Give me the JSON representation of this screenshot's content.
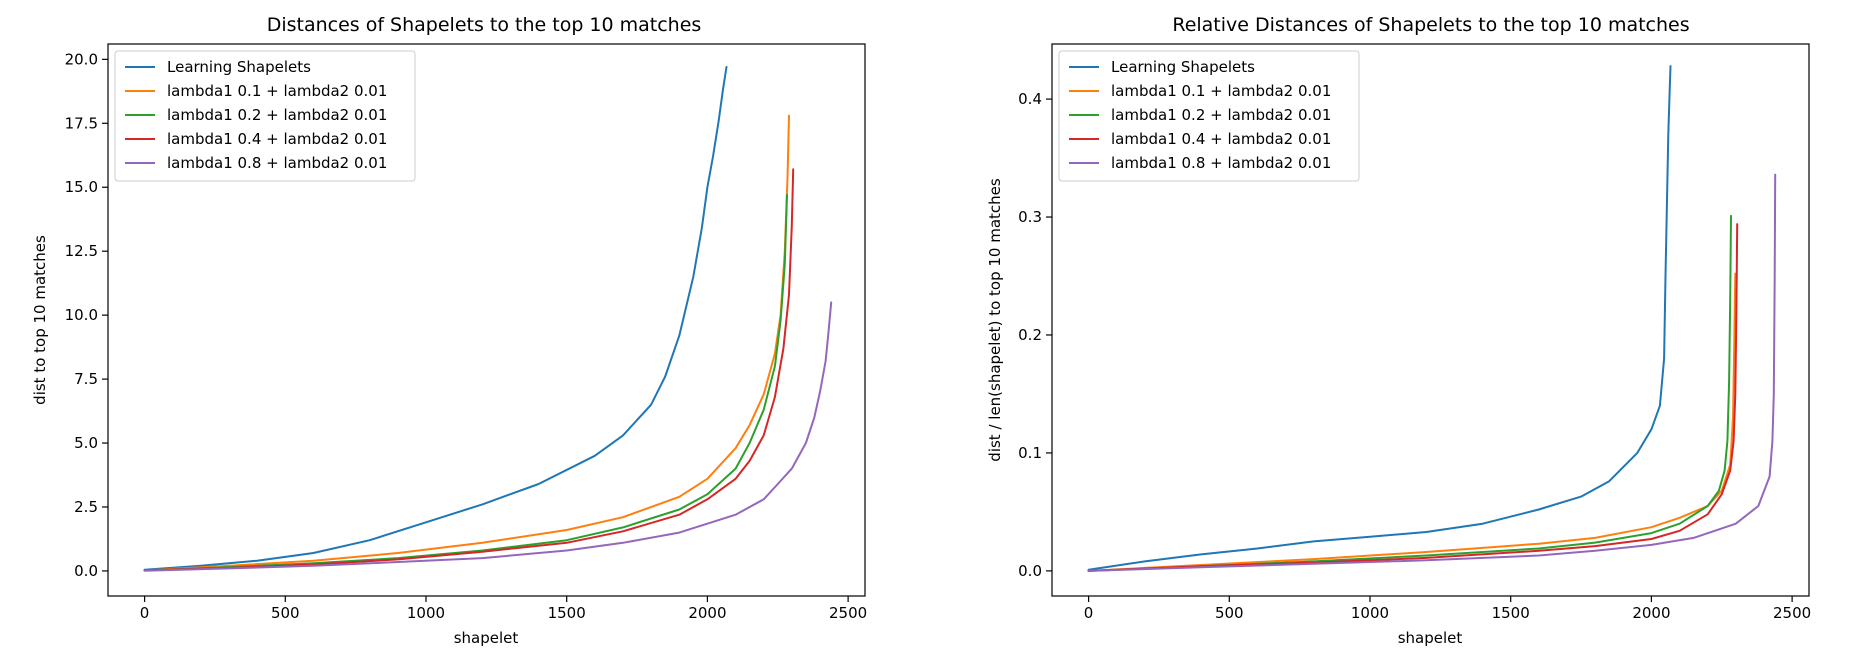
{
  "chart_data": [
    {
      "type": "line",
      "title": "Distances of Shapelets to the top 10 matches",
      "xlabel": "shapelet",
      "ylabel": "dist to top 10 matches",
      "xlim": [
        -130,
        2560
      ],
      "ylim": [
        -0.98,
        20.6
      ],
      "xticks": [
        0,
        500,
        1000,
        1500,
        2000,
        2500
      ],
      "yticks": [
        0.0,
        2.5,
        5.0,
        7.5,
        10.0,
        12.5,
        15.0,
        17.5,
        20.0
      ],
      "xtick_labels": [
        "0",
        "500",
        "1000",
        "1500",
        "2000",
        "2500"
      ],
      "ytick_labels": [
        "0.0",
        "2.5",
        "5.0",
        "7.5",
        "10.0",
        "12.5",
        "15.0",
        "17.5",
        "20.0"
      ],
      "legend_position": "upper-left",
      "grid": false,
      "series": [
        {
          "name": "Learning Shapelets",
          "color": "#1f77b4",
          "x": [
            0,
            200,
            400,
            600,
            800,
            1000,
            1200,
            1400,
            1600,
            1700,
            1800,
            1850,
            1900,
            1950,
            1980,
            2000,
            2020,
            2040,
            2055,
            2068
          ],
          "y": [
            0.05,
            0.2,
            0.4,
            0.7,
            1.2,
            1.9,
            2.6,
            3.4,
            4.5,
            5.3,
            6.5,
            7.6,
            9.2,
            11.5,
            13.4,
            15.0,
            16.2,
            17.6,
            18.8,
            19.7
          ]
        },
        {
          "name": "lambda1 0.1 + lambda2 0.01",
          "color": "#ff7f0e",
          "x": [
            0,
            300,
            600,
            900,
            1200,
            1500,
            1700,
            1900,
            2000,
            2100,
            2150,
            2200,
            2240,
            2260,
            2275,
            2285,
            2290
          ],
          "y": [
            0.02,
            0.2,
            0.4,
            0.7,
            1.1,
            1.6,
            2.1,
            2.9,
            3.6,
            4.8,
            5.7,
            6.9,
            8.5,
            10.0,
            12.5,
            15.5,
            17.8
          ]
        },
        {
          "name": "lambda1 0.2 + lambda2 0.01",
          "color": "#2ca02c",
          "x": [
            0,
            300,
            600,
            900,
            1200,
            1500,
            1700,
            1900,
            2000,
            2100,
            2150,
            2200,
            2240,
            2260,
            2275,
            2283
          ],
          "y": [
            0.02,
            0.15,
            0.3,
            0.5,
            0.8,
            1.2,
            1.7,
            2.4,
            3.0,
            4.0,
            5.0,
            6.3,
            8.0,
            9.8,
            12.0,
            14.7
          ]
        },
        {
          "name": "lambda1 0.4 + lambda2 0.01",
          "color": "#d62728",
          "x": [
            0,
            300,
            600,
            900,
            1200,
            1500,
            1700,
            1900,
            2000,
            2100,
            2150,
            2200,
            2240,
            2270,
            2290,
            2300,
            2305
          ],
          "y": [
            0.02,
            0.12,
            0.25,
            0.45,
            0.75,
            1.1,
            1.55,
            2.2,
            2.8,
            3.6,
            4.3,
            5.3,
            6.8,
            8.7,
            10.8,
            13.5,
            15.7
          ]
        },
        {
          "name": "lambda1 0.8 + lambda2 0.01",
          "color": "#9467bd",
          "x": [
            0,
            300,
            600,
            900,
            1200,
            1500,
            1700,
            1900,
            2100,
            2200,
            2250,
            2300,
            2350,
            2380,
            2400,
            2420,
            2430,
            2440
          ],
          "y": [
            0.01,
            0.1,
            0.2,
            0.35,
            0.5,
            0.8,
            1.1,
            1.5,
            2.2,
            2.8,
            3.4,
            4.0,
            5.0,
            6.0,
            7.0,
            8.2,
            9.3,
            10.5
          ]
        }
      ]
    },
    {
      "type": "line",
      "title": "Relative Distances of Shapelets to the top 10 matches",
      "xlabel": "shapelet",
      "ylabel": "dist / len(shapelet) to top 10 matches",
      "xlim": [
        -130,
        2560
      ],
      "ylim": [
        -0.0213,
        0.4467
      ],
      "xticks": [
        0,
        500,
        1000,
        1500,
        2000,
        2500
      ],
      "yticks": [
        0.0,
        0.1,
        0.2,
        0.3,
        0.4
      ],
      "xtick_labels": [
        "0",
        "500",
        "1000",
        "1500",
        "2000",
        "2500"
      ],
      "ytick_labels": [
        "0.0",
        "0.1",
        "0.2",
        "0.3",
        "0.4"
      ],
      "legend_position": "upper-left",
      "grid": false,
      "series": [
        {
          "name": "Learning Shapelets",
          "color": "#1f77b4",
          "x": [
            0,
            200,
            400,
            600,
            800,
            1000,
            1200,
            1400,
            1600,
            1750,
            1850,
            1950,
            2000,
            2030,
            2045,
            2050,
            2055,
            2060,
            2064,
            2068
          ],
          "y": [
            0.001,
            0.008,
            0.014,
            0.019,
            0.025,
            0.029,
            0.033,
            0.04,
            0.052,
            0.063,
            0.076,
            0.1,
            0.12,
            0.14,
            0.18,
            0.25,
            0.31,
            0.37,
            0.4,
            0.428
          ]
        },
        {
          "name": "lambda1 0.1 + lambda2 0.01",
          "color": "#ff7f0e",
          "x": [
            0,
            400,
            800,
            1200,
            1600,
            1800,
            2000,
            2100,
            2200,
            2250,
            2280,
            2290,
            2295,
            2298
          ],
          "y": [
            0.0,
            0.005,
            0.01,
            0.016,
            0.023,
            0.028,
            0.037,
            0.045,
            0.055,
            0.068,
            0.09,
            0.13,
            0.2,
            0.252
          ]
        },
        {
          "name": "lambda1 0.2 + lambda2 0.01",
          "color": "#2ca02c",
          "x": [
            0,
            400,
            800,
            1200,
            1600,
            1800,
            2000,
            2100,
            2200,
            2240,
            2260,
            2270,
            2276,
            2280,
            2283
          ],
          "y": [
            0.0,
            0.004,
            0.008,
            0.013,
            0.019,
            0.024,
            0.032,
            0.04,
            0.055,
            0.068,
            0.085,
            0.11,
            0.16,
            0.23,
            0.301
          ]
        },
        {
          "name": "lambda1 0.4 + lambda2 0.01",
          "color": "#d62728",
          "x": [
            0,
            400,
            800,
            1200,
            1600,
            1800,
            2000,
            2100,
            2200,
            2250,
            2280,
            2292,
            2298,
            2302,
            2305
          ],
          "y": [
            0.0,
            0.004,
            0.007,
            0.011,
            0.017,
            0.021,
            0.027,
            0.034,
            0.048,
            0.065,
            0.085,
            0.11,
            0.15,
            0.22,
            0.294
          ]
        },
        {
          "name": "lambda1 0.8 + lambda2 0.01",
          "color": "#9467bd",
          "x": [
            0,
            400,
            800,
            1200,
            1600,
            1800,
            2000,
            2150,
            2300,
            2380,
            2420,
            2430,
            2435,
            2438,
            2440
          ],
          "y": [
            0.0,
            0.003,
            0.006,
            0.009,
            0.013,
            0.017,
            0.022,
            0.028,
            0.04,
            0.055,
            0.08,
            0.11,
            0.15,
            0.25,
            0.336
          ]
        }
      ]
    }
  ]
}
